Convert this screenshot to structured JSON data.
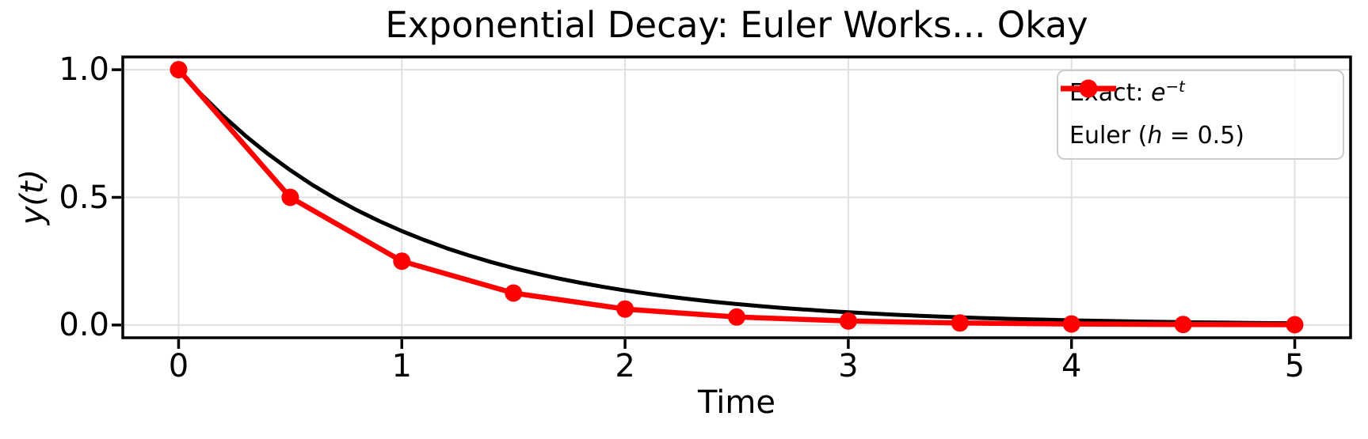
{
  "chart_data": {
    "type": "line",
    "title": "Exponential Decay: Euler Works... Okay",
    "xlabel": "Time",
    "ylabel": "y(t)",
    "xlim": [
      -0.25,
      5.25
    ],
    "ylim": [
      -0.05,
      1.05
    ],
    "xtick_values": [
      0,
      1,
      2,
      3,
      4,
      5
    ],
    "xtick_labels": [
      "0",
      "1",
      "2",
      "3",
      "4",
      "5"
    ],
    "ytick_values": [
      0.0,
      0.5,
      1.0
    ],
    "ytick_labels": [
      "0.0",
      "0.5",
      "1.0"
    ],
    "grid": true,
    "colors": {
      "background": "#ffffff",
      "grid": "#e0e0e0",
      "spine": "#000000",
      "legend_border": "#cccccc",
      "exact": "#000000",
      "euler": "#ff0000"
    },
    "legend": {
      "position": "upper right",
      "entries": [
        {
          "name": "Exact: e^(-t)",
          "prefix": "Exact: ",
          "var": "e",
          "sup": "−t",
          "suffix": "",
          "color": "#000000",
          "marker": false
        },
        {
          "name": "Euler (h = 0.5)",
          "prefix": "Euler (",
          "var": "h",
          "sup": "",
          "suffix": " = 0.5)",
          "color": "#ff0000",
          "marker": true
        }
      ]
    },
    "series": [
      {
        "name": "Exact: e^(-t)",
        "color": "#000000",
        "linewidth": 5,
        "marker": null,
        "x": [
          0,
          0.1,
          0.2,
          0.3,
          0.4,
          0.5,
          0.6,
          0.7,
          0.8,
          0.9,
          1.0,
          1.1,
          1.2,
          1.3,
          1.4,
          1.5,
          1.6,
          1.7,
          1.8,
          1.9,
          2.0,
          2.1,
          2.2,
          2.3,
          2.4,
          2.5,
          2.6,
          2.7,
          2.8,
          2.9,
          3.0,
          3.1,
          3.2,
          3.3,
          3.4,
          3.5,
          3.6,
          3.7,
          3.8,
          3.9,
          4.0,
          4.1,
          4.2,
          4.3,
          4.4,
          4.5,
          4.6,
          4.7,
          4.8,
          4.9,
          5.0
        ],
        "y": [
          1.0,
          0.9048,
          0.8187,
          0.7408,
          0.6703,
          0.6065,
          0.5488,
          0.4966,
          0.4493,
          0.4066,
          0.3679,
          0.3329,
          0.3012,
          0.2725,
          0.2466,
          0.2231,
          0.2019,
          0.1827,
          0.1653,
          0.1496,
          0.1353,
          0.1225,
          0.1108,
          0.1003,
          0.0907,
          0.0821,
          0.0743,
          0.0672,
          0.0608,
          0.055,
          0.0498,
          0.045,
          0.0408,
          0.0369,
          0.0334,
          0.0302,
          0.0273,
          0.0247,
          0.0224,
          0.0202,
          0.0183,
          0.0166,
          0.015,
          0.0136,
          0.0123,
          0.0111,
          0.0101,
          0.0091,
          0.0082,
          0.0074,
          0.0067
        ]
      },
      {
        "name": "Euler (h = 0.5)",
        "color": "#ff0000",
        "linewidth": 6.5,
        "marker": "circle",
        "marker_size": 11,
        "x": [
          0,
          0.5,
          1.0,
          1.5,
          2.0,
          2.5,
          3.0,
          3.5,
          4.0,
          4.5,
          5.0
        ],
        "y": [
          1.0,
          0.5,
          0.25,
          0.125,
          0.0625,
          0.03125,
          0.015625,
          0.0078125,
          0.00390625,
          0.001953125,
          0.0009765625
        ]
      }
    ]
  }
}
